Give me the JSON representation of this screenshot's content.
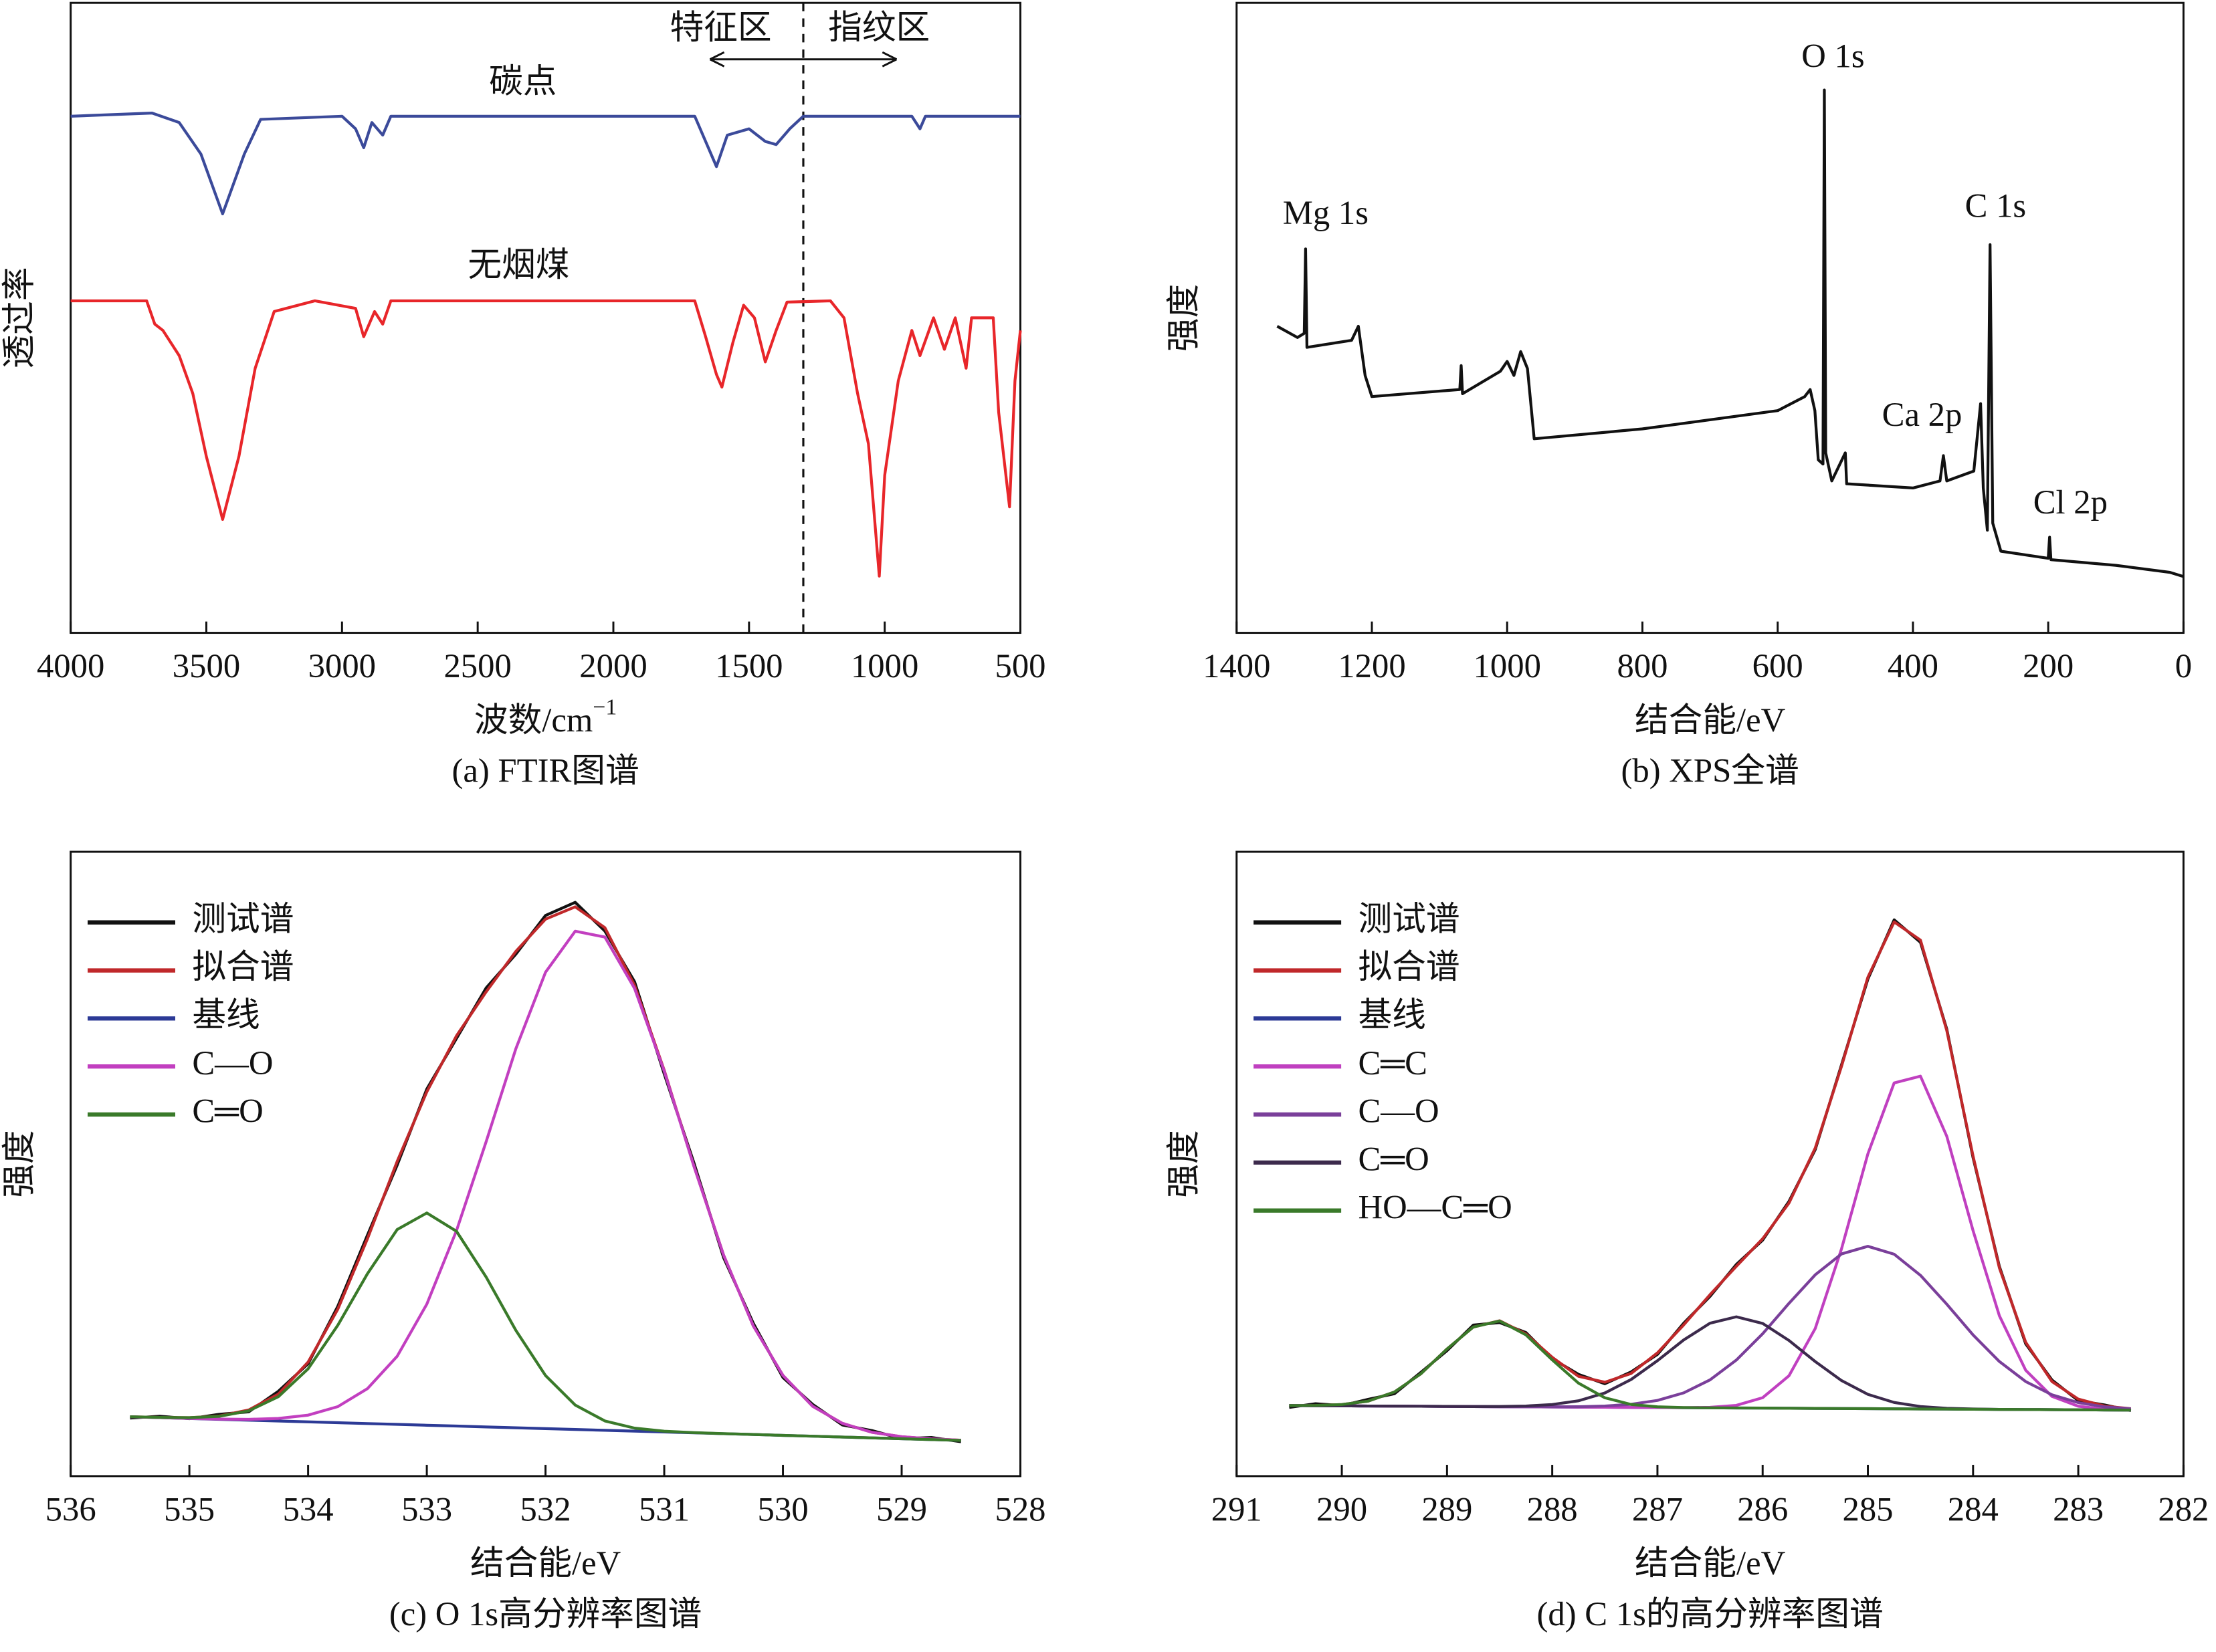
{
  "chart_data": [
    {
      "type": "line",
      "caption": "(a) FTIR图谱",
      "x_label": "波数/cm",
      "x_label_sup": "−1",
      "y_label": "透过率",
      "xlim": [
        4000,
        500
      ],
      "ylim": [
        0,
        100
      ],
      "xticks": [
        4000,
        3500,
        3000,
        2500,
        2000,
        1500,
        1000,
        500
      ],
      "legend": "inline",
      "divider": 1300,
      "annotations": [
        "特征区",
        "指纹区"
      ],
      "series": [
        {
          "name": "碳点",
          "color": "#3b4a9a",
          "x": [
            4000,
            3700,
            3600,
            3520,
            3440,
            3360,
            3300,
            3000,
            2950,
            2920,
            2890,
            2850,
            2820,
            2000,
            1700,
            1660,
            1620,
            1580,
            1500,
            1440,
            1400,
            1350,
            1300,
            900,
            870,
            850,
            500
          ],
          "values": [
            82,
            82.5,
            81,
            76,
            66.5,
            76,
            81.5,
            82,
            80,
            77,
            81,
            79,
            82,
            82,
            82,
            78,
            74,
            79,
            80,
            78,
            77.5,
            80,
            82,
            82,
            80,
            82,
            82
          ]
        },
        {
          "name": "无烟煤",
          "color": "#e8262a",
          "x": [
            4000,
            3720,
            3690,
            3660,
            3630,
            3600,
            3550,
            3500,
            3440,
            3380,
            3320,
            3250,
            3100,
            2950,
            2920,
            2880,
            2850,
            2820,
            1700,
            1660,
            1620,
            1600,
            1560,
            1520,
            1480,
            1440,
            1400,
            1360,
            1200,
            1150,
            1100,
            1060,
            1020,
            1000,
            950,
            900,
            870,
            820,
            780,
            740,
            700,
            680,
            600,
            580,
            540,
            520,
            500
          ],
          "values": [
            52.7,
            52.7,
            49,
            48,
            46,
            44,
            38,
            28,
            18,
            28,
            42,
            51,
            52.7,
            51.5,
            47,
            51,
            49,
            52.7,
            52.7,
            47,
            41,
            39,
            46,
            52,
            50,
            43,
            48,
            52.5,
            52.7,
            50,
            38,
            30,
            9,
            25,
            40,
            48,
            44,
            50,
            45,
            50,
            42,
            50,
            50,
            35,
            20,
            40,
            48
          ]
        }
      ]
    },
    {
      "type": "line",
      "caption": "(b) XPS全谱",
      "x_label": "结合能/eV",
      "y_label": "强度",
      "xlim": [
        1400,
        0
      ],
      "ylim": [
        0,
        100
      ],
      "xticks": [
        1400,
        1200,
        1000,
        800,
        600,
        400,
        200,
        0
      ],
      "annotations": [
        "Mg 1s",
        "O 1s",
        "C 1s",
        "Ca 2p",
        "Cl 2p"
      ],
      "series": [
        {
          "color": "#111111",
          "x": [
            1340,
            1310,
            1300,
            1298,
            1296,
            1230,
            1220,
            1210,
            1200,
            1070,
            1068,
            1066,
            1010,
            1000,
            990,
            980,
            970,
            960,
            800,
            600,
            560,
            552,
            545,
            540,
            533,
            531,
            529,
            520,
            500,
            498,
            400,
            360,
            355,
            350,
            310,
            300,
            296,
            290,
            286,
            282,
            270,
            200,
            198,
            196,
            100,
            20,
            0
          ],
          "values": [
            48.66,
            46.88,
            47.54,
            60.94,
            45.31,
            46.43,
            48.66,
            40.85,
            37.5,
            38.62,
            42.41,
            37.95,
            41.52,
            43.08,
            40.85,
            44.64,
            41.96,
            30.8,
            32.37,
            35.27,
            37.5,
            38.62,
            35.27,
            27.46,
            26.79,
            86.16,
            28.57,
            24.11,
            28.57,
            23.66,
            22.99,
            24.11,
            28.13,
            24.11,
            25.67,
            36.38,
            22.99,
            16.29,
            61.61,
            17.41,
            12.95,
            11.83,
            15.18,
            11.61,
            10.71,
            9.6,
            8.93
          ]
        }
      ]
    },
    {
      "type": "line",
      "caption": "(c) O 1s高分辨率图谱",
      "x_label": "结合能/eV",
      "y_label": "强度",
      "xlim": [
        536,
        528
      ],
      "ylim": [
        0,
        100
      ],
      "xticks": [
        536,
        535,
        534,
        533,
        532,
        531,
        530,
        529,
        528
      ],
      "legend": "upper left",
      "x": [
        535.5,
        535.25,
        535,
        534.75,
        534.5,
        534.25,
        534,
        533.75,
        533.5,
        533.25,
        533,
        532.75,
        532.5,
        532.25,
        532,
        531.75,
        531.5,
        531.25,
        531,
        530.75,
        530.5,
        530.25,
        530,
        529.75,
        529.5,
        529.25,
        529,
        528.75,
        528.5
      ],
      "series": [
        {
          "name": "测试谱",
          "color": "#111111",
          "values": [
            9.3,
            9.6,
            9.2,
            9.9,
            10.3,
            13.6,
            18.0,
            27.2,
            38.6,
            49.8,
            62.0,
            70.1,
            78.2,
            83.6,
            89.8,
            91.9,
            87.3,
            79.2,
            64.4,
            50.2,
            35.0,
            24.5,
            15.8,
            11.5,
            8.2,
            7.3,
            6.0,
            6.2,
            5.5
          ]
        },
        {
          "name": "拟合谱",
          "color": "#c0282a",
          "values": [
            9.51,
            9.4,
            9.37,
            9.62,
            10.6,
            13.14,
            18.27,
            26.73,
            38.02,
            50.39,
            61.55,
            70.52,
            77.58,
            84.05,
            89.21,
            91.18,
            87.84,
            78.59,
            65.0,
            49.67,
            35.41,
            24.07,
            16.13,
            11.2,
            8.46,
            7.02,
            6.32,
            5.97,
            5.75
          ]
        },
        {
          "name": "基线",
          "color": "#2c3a96",
          "values": [
            9.5,
            9.37,
            9.23,
            9.1,
            8.96,
            8.83,
            8.69,
            8.56,
            8.42,
            8.29,
            8.15,
            8.02,
            7.88,
            7.75,
            7.61,
            7.48,
            7.34,
            7.21,
            7.07,
            6.94,
            6.8,
            6.67,
            6.53,
            6.4,
            6.26,
            6.13,
            5.99,
            5.86,
            5.72
          ]
        },
        {
          "name": "C—O",
          "color": "#c23fc0",
          "values": [
            9.5,
            9.37,
            9.24,
            9.14,
            9.1,
            9.24,
            9.77,
            11.13,
            14.02,
            19.19,
            27.55,
            39.32,
            53.58,
            68.45,
            80.71,
            87.28,
            86.34,
            78.11,
            64.87,
            49.64,
            35.4,
            24.07,
            16.13,
            11.2,
            8.46,
            7.02,
            6.32,
            5.97,
            5.75
          ]
        },
        {
          "name": "C═O",
          "color": "#3a7a2a",
          "values": [
            9.51,
            9.4,
            9.36,
            9.58,
            10.46,
            12.73,
            17.19,
            24.16,
            32.42,
            39.49,
            42.15,
            39.22,
            31.88,
            23.35,
            16.11,
            11.38,
            8.84,
            7.69,
            7.2,
            6.97,
            6.81,
            6.67,
            6.53,
            6.4,
            6.26,
            6.13,
            5.99,
            5.86,
            5.72
          ]
        }
      ]
    },
    {
      "type": "line",
      "caption": "(d) C 1s的高分辨率图谱",
      "x_label": "结合能/eV",
      "y_label": "强度",
      "xlim": [
        291,
        282
      ],
      "ylim": [
        0,
        100
      ],
      "xticks": [
        291,
        290,
        289,
        288,
        287,
        286,
        285,
        284,
        283,
        282
      ],
      "legend": "upper left",
      "x": [
        290.5,
        290.25,
        290,
        289.75,
        289.5,
        289.25,
        289,
        288.75,
        288.5,
        288.25,
        288,
        287.75,
        287.5,
        287.25,
        287,
        286.75,
        286.5,
        286.25,
        286,
        285.75,
        285.5,
        285.25,
        285,
        284.75,
        284.5,
        284.25,
        284,
        283.75,
        283.5,
        283.25,
        283,
        282.75,
        282.5
      ],
      "series": [
        {
          "name": "测试谱",
          "color": "#111111",
          "values": [
            11.0,
            11.6,
            11.3,
            12.3,
            13.2,
            16.6,
            20.1,
            24.2,
            24.6,
            23.0,
            18.8,
            16.3,
            14.8,
            16.7,
            19.5,
            24.5,
            28.8,
            33.9,
            37.8,
            44.0,
            52.3,
            65.9,
            79.6,
            89.1,
            85.5,
            71.6,
            51.0,
            33.6,
            21.2,
            15.4,
            12.1,
            11.4,
            10.5
          ]
        },
        {
          "name": "拟合谱",
          "color": "#c0282a",
          "values": [
            11.31,
            11.32,
            11.47,
            12.01,
            13.48,
            16.37,
            20.37,
            23.88,
            24.89,
            22.77,
            19.03,
            15.98,
            15.04,
            16.45,
            19.74,
            24.23,
            29.07,
            33.61,
            38.02,
            43.73,
            52.55,
            65.66,
            79.9,
            88.76,
            85.85,
            71.37,
            51.26,
            33.36,
            21.45,
            15.15,
            12.34,
            11.22,
            10.8
          ]
        },
        {
          "name": "基线",
          "color": "#2c3a96",
          "values": [
            11.3,
            11.28,
            11.26,
            11.23,
            11.21,
            11.19,
            11.17,
            11.14,
            11.12,
            11.1,
            11.08,
            11.05,
            11.03,
            11.01,
            10.99,
            10.96,
            10.94,
            10.92,
            10.9,
            10.87,
            10.85,
            10.83,
            10.81,
            10.78,
            10.76,
            10.74,
            10.72,
            10.69,
            10.67,
            10.65,
            10.63,
            10.6,
            10.58
          ]
        },
        {
          "name": "C═C",
          "color": "#c040c0",
          "values": [
            11.3,
            11.28,
            11.26,
            11.23,
            11.21,
            11.19,
            11.17,
            11.14,
            11.12,
            11.1,
            11.08,
            11.05,
            11.03,
            11.01,
            10.99,
            10.97,
            11.03,
            11.34,
            12.56,
            16.07,
            23.65,
            36.43,
            51.61,
            62.98,
            64.06,
            54.44,
            39.32,
            25.69,
            16.97,
            12.77,
            11.2,
            10.72,
            10.6
          ]
        },
        {
          "name": "C—O",
          "color": "#7a3f9a",
          "values": [
            11.3,
            11.28,
            11.26,
            11.23,
            11.21,
            11.19,
            11.17,
            11.14,
            11.12,
            11.11,
            11.1,
            11.12,
            11.23,
            11.51,
            12.13,
            13.34,
            15.42,
            18.59,
            22.8,
            27.67,
            32.25,
            35.59,
            36.81,
            35.54,
            32.16,
            27.54,
            22.62,
            18.36,
            15.15,
            13.03,
            11.77,
            11.1,
            10.78
          ]
        },
        {
          "name": "C═O",
          "color": "#3c2a4c",
          "values": [
            11.3,
            11.28,
            11.26,
            11.23,
            11.21,
            11.19,
            11.17,
            11.14,
            11.16,
            11.23,
            11.47,
            12.07,
            13.32,
            15.48,
            18.49,
            21.82,
            24.5,
            25.52,
            24.46,
            21.73,
            18.35,
            15.3,
            13.1,
            11.8,
            11.15,
            10.87,
            10.76,
            10.69,
            10.67,
            10.65,
            10.63,
            10.6,
            10.58
          ]
        },
        {
          "name": "HO—C═O",
          "color": "#3a7a2a",
          "values": [
            11.31,
            11.32,
            11.47,
            12.01,
            13.48,
            16.37,
            20.37,
            23.88,
            24.85,
            22.63,
            18.62,
            14.89,
            12.55,
            11.48,
            11.1,
            10.98,
            10.94,
            10.92,
            10.9,
            10.87,
            10.85,
            10.83,
            10.81,
            10.78,
            10.76,
            10.74,
            10.72,
            10.69,
            10.67,
            10.65,
            10.63,
            10.6,
            10.58
          ]
        }
      ]
    }
  ]
}
